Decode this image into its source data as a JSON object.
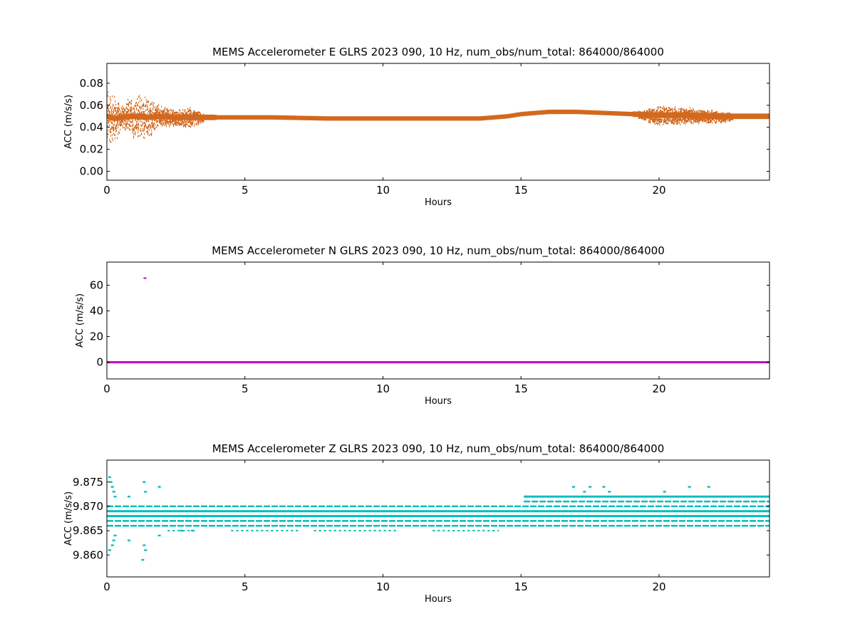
{
  "chart_data": [
    {
      "type": "scatter",
      "title": "MEMS Accelerometer E GLRS 2023 090, 10 Hz, num_obs/num_total: 864000/864000",
      "xlabel": "Hours",
      "ylabel": "ACC (m/s/s)",
      "xlim": [
        0,
        24
      ],
      "ylim": [
        -0.008,
        0.098
      ],
      "xticks": [
        0,
        5,
        10,
        15,
        20
      ],
      "xtick_labels": [
        "0",
        "5",
        "10",
        "15",
        "20"
      ],
      "yticks": [
        0.0,
        0.02,
        0.04,
        0.06,
        0.08
      ],
      "ytick_labels": [
        "0.00",
        "0.02",
        "0.04",
        "0.06",
        "0.08"
      ],
      "grid": false,
      "color": "#d2691e",
      "series": [
        {
          "x": [
            0,
            0.25,
            0.5,
            1,
            1.5,
            2,
            2.5,
            3,
            3.5,
            4,
            6,
            8,
            10,
            12,
            13.5,
            14.5,
            15,
            15.5,
            16,
            17,
            18,
            19,
            20,
            21,
            22,
            23,
            24
          ],
          "y": [
            0.05,
            0.048,
            0.049,
            0.05,
            0.049,
            0.05,
            0.049,
            0.049,
            0.049,
            0.049,
            0.049,
            0.048,
            0.048,
            0.048,
            0.048,
            0.05,
            0.052,
            0.053,
            0.054,
            0.054,
            0.053,
            0.052,
            0.051,
            0.051,
            0.05,
            0.05,
            0.05
          ],
          "spread": [
            0.03,
            0.025,
            0.012,
            0.022,
            0.02,
            0.01,
            0.008,
            0.01,
            0.004,
            0.002,
            0.002,
            0.002,
            0.002,
            0.002,
            0.002,
            0.002,
            0.002,
            0.002,
            0.002,
            0.002,
            0.002,
            0.002,
            0.01,
            0.008,
            0.006,
            0.003,
            0.003
          ]
        }
      ]
    },
    {
      "type": "scatter",
      "title": "MEMS Accelerometer N GLRS 2023 090, 10 Hz, num_obs/num_total: 864000/864000",
      "xlabel": "Hours",
      "ylabel": "ACC (m/s/s)",
      "xlim": [
        0,
        24
      ],
      "ylim": [
        -13,
        78
      ],
      "xticks": [
        0,
        5,
        10,
        15,
        20
      ],
      "xtick_labels": [
        "0",
        "5",
        "10",
        "15",
        "20"
      ],
      "yticks": [
        0,
        20,
        40,
        60
      ],
      "ytick_labels": [
        "0",
        "20",
        "40",
        "60"
      ],
      "grid": false,
      "color": "#bf00bf",
      "series": [
        {
          "x": [
            0,
            24
          ],
          "y": [
            0,
            0
          ]
        }
      ],
      "outliers": [
        {
          "x": 1.38,
          "y": 65.5
        }
      ]
    },
    {
      "type": "scatter",
      "title": "MEMS Accelerometer Z GLRS 2023 090, 10 Hz, num_obs/num_total: 864000/864000",
      "xlabel": "Hours",
      "ylabel": "ACC (m/s/s)",
      "xlim": [
        0,
        24
      ],
      "ylim": [
        9.8555,
        9.8795
      ],
      "xticks": [
        0,
        5,
        10,
        15,
        20
      ],
      "xtick_labels": [
        "0",
        "5",
        "10",
        "15",
        "20"
      ],
      "yticks": [
        9.86,
        9.865,
        9.87,
        9.875
      ],
      "ytick_labels": [
        "9.860",
        "9.865",
        "9.870",
        "9.875"
      ],
      "grid": false,
      "color": "#00bfbf",
      "series": [
        {
          "levels": [
            9.866,
            9.867,
            9.868,
            9.869,
            9.87
          ],
          "x_range": [
            0,
            24
          ]
        },
        {
          "levels": [
            9.871,
            9.872
          ],
          "x_range": [
            15.1,
            24
          ]
        }
      ],
      "scatter_points": [
        {
          "x": 0.1,
          "y": 9.876
        },
        {
          "x": 0.15,
          "y": 9.875
        },
        {
          "x": 0.2,
          "y": 9.874
        },
        {
          "x": 0.25,
          "y": 9.873
        },
        {
          "x": 0.3,
          "y": 9.872
        },
        {
          "x": 0.1,
          "y": 9.861
        },
        {
          "x": 0.2,
          "y": 9.862
        },
        {
          "x": 0.25,
          "y": 9.863
        },
        {
          "x": 0.3,
          "y": 9.864
        },
        {
          "x": 1.35,
          "y": 9.875
        },
        {
          "x": 1.4,
          "y": 9.873
        },
        {
          "x": 1.3,
          "y": 9.859
        },
        {
          "x": 1.4,
          "y": 9.861
        },
        {
          "x": 1.35,
          "y": 9.862
        },
        {
          "x": 0.8,
          "y": 9.872
        },
        {
          "x": 0.8,
          "y": 9.863
        },
        {
          "x": 1.9,
          "y": 9.874
        },
        {
          "x": 1.9,
          "y": 9.864
        },
        {
          "x": 3.1,
          "y": 9.865
        },
        {
          "x": 2.7,
          "y": 9.865
        },
        {
          "x": 16.9,
          "y": 9.874
        },
        {
          "x": 17.5,
          "y": 9.874
        },
        {
          "x": 18.0,
          "y": 9.874
        },
        {
          "x": 17.3,
          "y": 9.873
        },
        {
          "x": 18.2,
          "y": 9.873
        },
        {
          "x": 21.1,
          "y": 9.874
        },
        {
          "x": 21.8,
          "y": 9.874
        },
        {
          "x": 20.2,
          "y": 9.873
        }
      ]
    }
  ]
}
